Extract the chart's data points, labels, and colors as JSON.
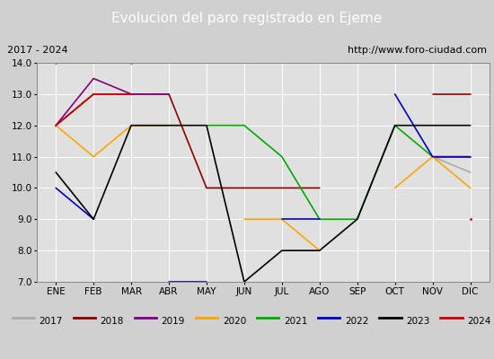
{
  "title": "Evolucion del paro registrado en Ejeme",
  "subtitle_left": "2017 - 2024",
  "subtitle_right": "http://www.foro-ciudad.com",
  "x_labels": [
    "ENE",
    "FEB",
    "MAR",
    "ABR",
    "MAY",
    "JUN",
    "JUL",
    "AGO",
    "SEP",
    "OCT",
    "NOV",
    "DIC"
  ],
  "ylim": [
    7.0,
    14.0
  ],
  "yticks": [
    7.0,
    8.0,
    9.0,
    10.0,
    11.0,
    12.0,
    13.0,
    14.0
  ],
  "series": {
    "2017": {
      "color": "#aaaaaa",
      "data": [
        12.0,
        null,
        null,
        null,
        null,
        null,
        null,
        null,
        null,
        null,
        11.0,
        10.5
      ]
    },
    "2018": {
      "color": "#8b0000",
      "data": [
        12.0,
        13.0,
        13.0,
        13.0,
        10.0,
        10.0,
        10.0,
        10.0,
        null,
        null,
        13.0,
        13.0
      ]
    },
    "2019": {
      "color": "#800080",
      "data": [
        12.0,
        13.5,
        13.0,
        13.0,
        null,
        null,
        null,
        null,
        null,
        null,
        11.0,
        11.0
      ]
    },
    "2020": {
      "color": "#ffa500",
      "data": [
        12.0,
        11.0,
        12.0,
        12.0,
        null,
        9.0,
        9.0,
        8.0,
        null,
        10.0,
        11.0,
        10.0
      ]
    },
    "2021": {
      "color": "#00aa00",
      "data": [
        14.0,
        null,
        14.0,
        null,
        12.0,
        12.0,
        11.0,
        9.0,
        9.0,
        12.0,
        11.0,
        null
      ]
    },
    "2022": {
      "color": "#0000cc",
      "data": [
        10.0,
        9.0,
        null,
        7.0,
        7.0,
        null,
        9.0,
        9.0,
        null,
        13.0,
        11.0,
        11.0
      ]
    },
    "2023": {
      "color": "#000000",
      "data": [
        10.5,
        9.0,
        12.0,
        12.0,
        12.0,
        7.0,
        8.0,
        8.0,
        9.0,
        12.0,
        12.0,
        12.0
      ]
    },
    "2024": {
      "color": "#cc0000",
      "data": [
        12.0,
        13.0,
        13.0,
        null,
        null,
        null,
        null,
        null,
        null,
        null,
        null,
        9.0
      ]
    }
  },
  "legend_years": [
    "2017",
    "2018",
    "2019",
    "2020",
    "2021",
    "2022",
    "2023",
    "2024"
  ],
  "title_bg_color": "#4169b0",
  "title_color": "#ffffff",
  "subtitle_bg_color": "#d8d8d8",
  "plot_bg_color": "#e0e0e0",
  "grid_color": "#ffffff",
  "fig_bg_color": "#d0d0d0"
}
